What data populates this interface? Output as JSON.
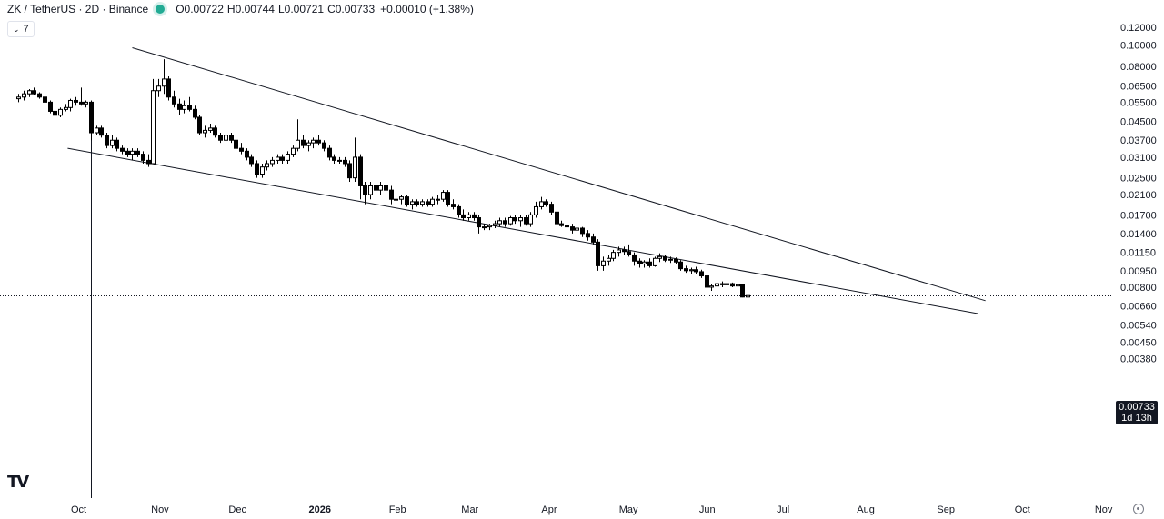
{
  "header": {
    "symbol": "ZK / TetherUS · 2D · Binance",
    "open_label": "O",
    "open": "0.00722",
    "high_label": "H",
    "high": "0.00744",
    "low_label": "L",
    "low": "0.00721",
    "close_label": "C",
    "close": "0.00733",
    "change": "+0.00010 (+1.38%)",
    "indicator_count": "7"
  },
  "logo_text": "TV",
  "price_badge": {
    "price": "0.00733",
    "countdown": "1d 13h"
  },
  "colors": {
    "up": "#ffffff",
    "down": "#000000",
    "status": "#22ab94"
  },
  "chart_data": {
    "type": "candlestick",
    "scale": "log",
    "ylim": [
      0.0036,
      0.13
    ],
    "y_ticks": [
      "0.12000",
      "0.10000",
      "0.08000",
      "0.06500",
      "0.05500",
      "0.04500",
      "0.03700",
      "0.03100",
      "0.02500",
      "0.02100",
      "0.01700",
      "0.01400",
      "0.01150",
      "0.00950",
      "0.00800",
      "0.00660",
      "0.00540",
      "0.00450",
      "0.00380"
    ],
    "x_labels": [
      {
        "label": "Oct",
        "day": 0
      },
      {
        "label": "Nov",
        "day": 31
      },
      {
        "label": "Dec",
        "day": 61
      },
      {
        "label": "2026",
        "day": 92
      },
      {
        "label": "Feb",
        "day": 123
      },
      {
        "label": "Mar",
        "day": 151
      },
      {
        "label": "Apr",
        "day": 182
      },
      {
        "label": "May",
        "day": 212
      },
      {
        "label": "Jun",
        "day": 243
      },
      {
        "label": "Jul",
        "day": 273
      },
      {
        "label": "Aug",
        "day": 304
      },
      {
        "label": "Sep",
        "day": 335
      },
      {
        "label": "Oct",
        "day": 365
      },
      {
        "label": "Nov",
        "day": 396
      }
    ],
    "current_price": 0.00733,
    "candles": [
      {
        "day": -28,
        "o": 0.057,
        "h": 0.06,
        "l": 0.055,
        "c": 0.058
      },
      {
        "day": -26,
        "o": 0.058,
        "h": 0.062,
        "l": 0.056,
        "c": 0.06
      },
      {
        "day": -24,
        "o": 0.06,
        "h": 0.063,
        "l": 0.058,
        "c": 0.062
      },
      {
        "day": -22,
        "o": 0.062,
        "h": 0.064,
        "l": 0.059,
        "c": 0.06
      },
      {
        "day": -20,
        "o": 0.06,
        "h": 0.061,
        "l": 0.057,
        "c": 0.058
      },
      {
        "day": -18,
        "o": 0.058,
        "h": 0.06,
        "l": 0.054,
        "c": 0.055
      },
      {
        "day": -16,
        "o": 0.055,
        "h": 0.056,
        "l": 0.049,
        "c": 0.05
      },
      {
        "day": -14,
        "o": 0.05,
        "h": 0.052,
        "l": 0.047,
        "c": 0.048
      },
      {
        "day": -12,
        "o": 0.048,
        "h": 0.052,
        "l": 0.047,
        "c": 0.051
      },
      {
        "day": -10,
        "o": 0.051,
        "h": 0.054,
        "l": 0.05,
        "c": 0.052
      },
      {
        "day": -8,
        "o": 0.052,
        "h": 0.057,
        "l": 0.05,
        "c": 0.056
      },
      {
        "day": -6,
        "o": 0.056,
        "h": 0.058,
        "l": 0.053,
        "c": 0.055
      },
      {
        "day": -4,
        "o": 0.055,
        "h": 0.064,
        "l": 0.053,
        "c": 0.054
      },
      {
        "day": -2,
        "o": 0.054,
        "h": 0.056,
        "l": 0.052,
        "c": 0.055
      },
      {
        "day": 0,
        "o": 0.055,
        "h": 0.056,
        "l": 0.037,
        "c": 0.04
      },
      {
        "day": 2,
        "o": 0.04,
        "h": 0.043,
        "l": 0.039,
        "c": 0.042
      },
      {
        "day": 4,
        "o": 0.042,
        "h": 0.043,
        "l": 0.038,
        "c": 0.039
      },
      {
        "day": 6,
        "o": 0.039,
        "h": 0.04,
        "l": 0.034,
        "c": 0.035
      },
      {
        "day": 8,
        "o": 0.035,
        "h": 0.039,
        "l": 0.034,
        "c": 0.037
      },
      {
        "day": 10,
        "o": 0.037,
        "h": 0.038,
        "l": 0.033,
        "c": 0.034
      },
      {
        "day": 12,
        "o": 0.034,
        "h": 0.035,
        "l": 0.032,
        "c": 0.033
      },
      {
        "day": 14,
        "o": 0.033,
        "h": 0.034,
        "l": 0.031,
        "c": 0.032
      },
      {
        "day": 16,
        "o": 0.032,
        "h": 0.034,
        "l": 0.03,
        "c": 0.033
      },
      {
        "day": 18,
        "o": 0.033,
        "h": 0.034,
        "l": 0.031,
        "c": 0.032
      },
      {
        "day": 20,
        "o": 0.032,
        "h": 0.033,
        "l": 0.029,
        "c": 0.03
      },
      {
        "day": 22,
        "o": 0.03,
        "h": 0.032,
        "l": 0.028,
        "c": 0.029
      },
      {
        "day": 24,
        "o": 0.029,
        "h": 0.07,
        "l": 0.029,
        "c": 0.062
      },
      {
        "day": 26,
        "o": 0.062,
        "h": 0.07,
        "l": 0.058,
        "c": 0.065
      },
      {
        "day": 28,
        "o": 0.065,
        "h": 0.086,
        "l": 0.06,
        "c": 0.07
      },
      {
        "day": 30,
        "o": 0.07,
        "h": 0.072,
        "l": 0.056,
        "c": 0.058
      },
      {
        "day": 32,
        "o": 0.058,
        "h": 0.062,
        "l": 0.052,
        "c": 0.054
      },
      {
        "day": 34,
        "o": 0.054,
        "h": 0.057,
        "l": 0.048,
        "c": 0.051
      },
      {
        "day": 36,
        "o": 0.051,
        "h": 0.056,
        "l": 0.049,
        "c": 0.053
      },
      {
        "day": 38,
        "o": 0.053,
        "h": 0.058,
        "l": 0.05,
        "c": 0.051
      },
      {
        "day": 40,
        "o": 0.051,
        "h": 0.053,
        "l": 0.046,
        "c": 0.047
      },
      {
        "day": 42,
        "o": 0.047,
        "h": 0.048,
        "l": 0.039,
        "c": 0.04
      },
      {
        "day": 44,
        "o": 0.04,
        "h": 0.043,
        "l": 0.038,
        "c": 0.041
      },
      {
        "day": 46,
        "o": 0.041,
        "h": 0.044,
        "l": 0.04,
        "c": 0.042
      },
      {
        "day": 48,
        "o": 0.042,
        "h": 0.043,
        "l": 0.038,
        "c": 0.039
      },
      {
        "day": 50,
        "o": 0.039,
        "h": 0.04,
        "l": 0.036,
        "c": 0.037
      },
      {
        "day": 52,
        "o": 0.037,
        "h": 0.04,
        "l": 0.036,
        "c": 0.039
      },
      {
        "day": 54,
        "o": 0.039,
        "h": 0.04,
        "l": 0.036,
        "c": 0.037
      },
      {
        "day": 56,
        "o": 0.037,
        "h": 0.038,
        "l": 0.033,
        "c": 0.034
      },
      {
        "day": 58,
        "o": 0.034,
        "h": 0.036,
        "l": 0.032,
        "c": 0.033
      },
      {
        "day": 60,
        "o": 0.033,
        "h": 0.034,
        "l": 0.03,
        "c": 0.031
      },
      {
        "day": 62,
        "o": 0.031,
        "h": 0.032,
        "l": 0.028,
        "c": 0.029
      },
      {
        "day": 64,
        "o": 0.029,
        "h": 0.03,
        "l": 0.025,
        "c": 0.026
      },
      {
        "day": 66,
        "o": 0.026,
        "h": 0.029,
        "l": 0.025,
        "c": 0.028
      },
      {
        "day": 68,
        "o": 0.028,
        "h": 0.03,
        "l": 0.027,
        "c": 0.029
      },
      {
        "day": 70,
        "o": 0.029,
        "h": 0.031,
        "l": 0.028,
        "c": 0.03
      },
      {
        "day": 72,
        "o": 0.03,
        "h": 0.032,
        "l": 0.029,
        "c": 0.031
      },
      {
        "day": 74,
        "o": 0.031,
        "h": 0.032,
        "l": 0.029,
        "c": 0.03
      },
      {
        "day": 76,
        "o": 0.03,
        "h": 0.033,
        "l": 0.029,
        "c": 0.032
      },
      {
        "day": 78,
        "o": 0.032,
        "h": 0.035,
        "l": 0.031,
        "c": 0.034
      },
      {
        "day": 80,
        "o": 0.034,
        "h": 0.046,
        "l": 0.033,
        "c": 0.037
      },
      {
        "day": 82,
        "o": 0.037,
        "h": 0.039,
        "l": 0.034,
        "c": 0.035
      },
      {
        "day": 84,
        "o": 0.035,
        "h": 0.037,
        "l": 0.033,
        "c": 0.036
      },
      {
        "day": 86,
        "o": 0.036,
        "h": 0.038,
        "l": 0.034,
        "c": 0.037
      },
      {
        "day": 88,
        "o": 0.037,
        "h": 0.039,
        "l": 0.035,
        "c": 0.036
      },
      {
        "day": 90,
        "o": 0.036,
        "h": 0.037,
        "l": 0.033,
        "c": 0.034
      },
      {
        "day": 92,
        "o": 0.034,
        "h": 0.035,
        "l": 0.03,
        "c": 0.031
      },
      {
        "day": 94,
        "o": 0.031,
        "h": 0.032,
        "l": 0.029,
        "c": 0.03
      },
      {
        "day": 96,
        "o": 0.03,
        "h": 0.031,
        "l": 0.029,
        "c": 0.03
      },
      {
        "day": 98,
        "o": 0.03,
        "h": 0.031,
        "l": 0.028,
        "c": 0.029
      },
      {
        "day": 100,
        "o": 0.029,
        "h": 0.03,
        "l": 0.024,
        "c": 0.025
      },
      {
        "day": 102,
        "o": 0.025,
        "h": 0.038,
        "l": 0.024,
        "c": 0.031
      },
      {
        "day": 104,
        "o": 0.031,
        "h": 0.032,
        "l": 0.02,
        "c": 0.023
      },
      {
        "day": 106,
        "o": 0.023,
        "h": 0.024,
        "l": 0.019,
        "c": 0.021
      },
      {
        "day": 108,
        "o": 0.021,
        "h": 0.024,
        "l": 0.02,
        "c": 0.023
      },
      {
        "day": 110,
        "o": 0.023,
        "h": 0.024,
        "l": 0.021,
        "c": 0.022
      },
      {
        "day": 112,
        "o": 0.022,
        "h": 0.024,
        "l": 0.021,
        "c": 0.023
      },
      {
        "day": 114,
        "o": 0.023,
        "h": 0.024,
        "l": 0.021,
        "c": 0.022
      },
      {
        "day": 116,
        "o": 0.022,
        "h": 0.023,
        "l": 0.019,
        "c": 0.02
      },
      {
        "day": 118,
        "o": 0.02,
        "h": 0.021,
        "l": 0.019,
        "c": 0.02
      },
      {
        "day": 120,
        "o": 0.02,
        "h": 0.021,
        "l": 0.019,
        "c": 0.0205
      },
      {
        "day": 122,
        "o": 0.0205,
        "h": 0.021,
        "l": 0.0185,
        "c": 0.019
      },
      {
        "day": 124,
        "o": 0.019,
        "h": 0.02,
        "l": 0.018,
        "c": 0.0195
      },
      {
        "day": 126,
        "o": 0.0195,
        "h": 0.02,
        "l": 0.0185,
        "c": 0.019
      },
      {
        "day": 128,
        "o": 0.019,
        "h": 0.02,
        "l": 0.0185,
        "c": 0.0195
      },
      {
        "day": 130,
        "o": 0.0195,
        "h": 0.02,
        "l": 0.0185,
        "c": 0.019
      },
      {
        "day": 132,
        "o": 0.019,
        "h": 0.0205,
        "l": 0.0185,
        "c": 0.02
      },
      {
        "day": 134,
        "o": 0.02,
        "h": 0.021,
        "l": 0.019,
        "c": 0.02
      },
      {
        "day": 136,
        "o": 0.02,
        "h": 0.022,
        "l": 0.0195,
        "c": 0.0215
      },
      {
        "day": 138,
        "o": 0.0215,
        "h": 0.022,
        "l": 0.0185,
        "c": 0.019
      },
      {
        "day": 140,
        "o": 0.019,
        "h": 0.02,
        "l": 0.018,
        "c": 0.0185
      },
      {
        "day": 142,
        "o": 0.0185,
        "h": 0.019,
        "l": 0.0165,
        "c": 0.017
      },
      {
        "day": 144,
        "o": 0.017,
        "h": 0.018,
        "l": 0.016,
        "c": 0.0165
      },
      {
        "day": 146,
        "o": 0.0165,
        "h": 0.0175,
        "l": 0.016,
        "c": 0.017
      },
      {
        "day": 148,
        "o": 0.017,
        "h": 0.0175,
        "l": 0.016,
        "c": 0.0165
      },
      {
        "day": 150,
        "o": 0.0165,
        "h": 0.017,
        "l": 0.014,
        "c": 0.015
      },
      {
        "day": 152,
        "o": 0.015,
        "h": 0.0155,
        "l": 0.0145,
        "c": 0.015
      },
      {
        "day": 154,
        "o": 0.015,
        "h": 0.0155,
        "l": 0.0145,
        "c": 0.0152
      },
      {
        "day": 156,
        "o": 0.0152,
        "h": 0.016,
        "l": 0.0148,
        "c": 0.0155
      },
      {
        "day": 158,
        "o": 0.0155,
        "h": 0.0165,
        "l": 0.015,
        "c": 0.016
      },
      {
        "day": 160,
        "o": 0.016,
        "h": 0.0165,
        "l": 0.015,
        "c": 0.0155
      },
      {
        "day": 162,
        "o": 0.0155,
        "h": 0.0168,
        "l": 0.0152,
        "c": 0.0165
      },
      {
        "day": 164,
        "o": 0.0165,
        "h": 0.017,
        "l": 0.0155,
        "c": 0.016
      },
      {
        "day": 166,
        "o": 0.016,
        "h": 0.017,
        "l": 0.015,
        "c": 0.0165
      },
      {
        "day": 168,
        "o": 0.0165,
        "h": 0.017,
        "l": 0.0152,
        "c": 0.0155
      },
      {
        "day": 170,
        "o": 0.0155,
        "h": 0.0175,
        "l": 0.015,
        "c": 0.017
      },
      {
        "day": 172,
        "o": 0.017,
        "h": 0.0195,
        "l": 0.0165,
        "c": 0.0185
      },
      {
        "day": 174,
        "o": 0.0185,
        "h": 0.0205,
        "l": 0.018,
        "c": 0.0195
      },
      {
        "day": 176,
        "o": 0.0195,
        "h": 0.02,
        "l": 0.0185,
        "c": 0.019
      },
      {
        "day": 178,
        "o": 0.019,
        "h": 0.0195,
        "l": 0.017,
        "c": 0.0175
      },
      {
        "day": 180,
        "o": 0.0175,
        "h": 0.018,
        "l": 0.015,
        "c": 0.0155
      },
      {
        "day": 182,
        "o": 0.0155,
        "h": 0.016,
        "l": 0.015,
        "c": 0.0152
      },
      {
        "day": 184,
        "o": 0.0152,
        "h": 0.0158,
        "l": 0.0145,
        "c": 0.015
      },
      {
        "day": 186,
        "o": 0.015,
        "h": 0.0155,
        "l": 0.014,
        "c": 0.0145
      },
      {
        "day": 188,
        "o": 0.0145,
        "h": 0.015,
        "l": 0.014,
        "c": 0.0148
      },
      {
        "day": 190,
        "o": 0.0148,
        "h": 0.015,
        "l": 0.0135,
        "c": 0.014
      },
      {
        "day": 192,
        "o": 0.014,
        "h": 0.0145,
        "l": 0.013,
        "c": 0.0135
      },
      {
        "day": 194,
        "o": 0.0135,
        "h": 0.014,
        "l": 0.0125,
        "c": 0.0128
      },
      {
        "day": 196,
        "o": 0.0128,
        "h": 0.0132,
        "l": 0.0095,
        "c": 0.01
      },
      {
        "day": 198,
        "o": 0.01,
        "h": 0.011,
        "l": 0.0095,
        "c": 0.0105
      },
      {
        "day": 200,
        "o": 0.0105,
        "h": 0.0112,
        "l": 0.01,
        "c": 0.0108
      },
      {
        "day": 202,
        "o": 0.0108,
        "h": 0.0118,
        "l": 0.0105,
        "c": 0.0115
      },
      {
        "day": 204,
        "o": 0.0115,
        "h": 0.0122,
        "l": 0.011,
        "c": 0.0118
      },
      {
        "day": 206,
        "o": 0.0118,
        "h": 0.0122,
        "l": 0.0112,
        "c": 0.0116
      },
      {
        "day": 208,
        "o": 0.0116,
        "h": 0.0125,
        "l": 0.011,
        "c": 0.0112
      },
      {
        "day": 210,
        "o": 0.0112,
        "h": 0.0115,
        "l": 0.01,
        "c": 0.0105
      },
      {
        "day": 212,
        "o": 0.0105,
        "h": 0.0108,
        "l": 0.0098,
        "c": 0.0102
      },
      {
        "day": 214,
        "o": 0.0102,
        "h": 0.0106,
        "l": 0.0098,
        "c": 0.0104
      },
      {
        "day": 216,
        "o": 0.0104,
        "h": 0.0108,
        "l": 0.0098,
        "c": 0.01
      },
      {
        "day": 218,
        "o": 0.01,
        "h": 0.011,
        "l": 0.0099,
        "c": 0.0108
      },
      {
        "day": 220,
        "o": 0.0108,
        "h": 0.0114,
        "l": 0.0104,
        "c": 0.011
      },
      {
        "day": 222,
        "o": 0.011,
        "h": 0.0112,
        "l": 0.0104,
        "c": 0.0106
      },
      {
        "day": 224,
        "o": 0.0106,
        "h": 0.011,
        "l": 0.0103,
        "c": 0.0107
      },
      {
        "day": 226,
        "o": 0.0107,
        "h": 0.0109,
        "l": 0.0102,
        "c": 0.0104
      },
      {
        "day": 228,
        "o": 0.0104,
        "h": 0.0106,
        "l": 0.0095,
        "c": 0.0097
      },
      {
        "day": 230,
        "o": 0.0097,
        "h": 0.01,
        "l": 0.0093,
        "c": 0.0095
      },
      {
        "day": 232,
        "o": 0.0095,
        "h": 0.0098,
        "l": 0.0092,
        "c": 0.0096
      },
      {
        "day": 234,
        "o": 0.0096,
        "h": 0.0099,
        "l": 0.0092,
        "c": 0.0094
      },
      {
        "day": 236,
        "o": 0.0094,
        "h": 0.0096,
        "l": 0.0088,
        "c": 0.009
      },
      {
        "day": 238,
        "o": 0.009,
        "h": 0.0092,
        "l": 0.0078,
        "c": 0.008
      },
      {
        "day": 240,
        "o": 0.008,
        "h": 0.0083,
        "l": 0.0077,
        "c": 0.0081
      },
      {
        "day": 242,
        "o": 0.0081,
        "h": 0.0084,
        "l": 0.0079,
        "c": 0.0083
      },
      {
        "day": 244,
        "o": 0.0083,
        "h": 0.0085,
        "l": 0.008,
        "c": 0.0082
      },
      {
        "day": 246,
        "o": 0.0082,
        "h": 0.0084,
        "l": 0.008,
        "c": 0.0083
      },
      {
        "day": 248,
        "o": 0.0083,
        "h": 0.0084,
        "l": 0.008,
        "c": 0.0081
      },
      {
        "day": 250,
        "o": 0.0081,
        "h": 0.0085,
        "l": 0.0079,
        "c": 0.0082
      },
      {
        "day": 252,
        "o": 0.0082,
        "h": 0.0083,
        "l": 0.0072,
        "c": 0.00722
      },
      {
        "day": 254,
        "o": 0.00722,
        "h": 0.00744,
        "l": 0.00721,
        "c": 0.00733
      }
    ],
    "trendlines": [
      {
        "name": "upper",
        "from": {
          "day": 16,
          "price": 0.097
        },
        "to": {
          "day": 346,
          "price": 0.00695
        }
      },
      {
        "name": "lower",
        "from": {
          "day": -9,
          "price": 0.034
        },
        "to": {
          "day": 343,
          "price": 0.00608
        }
      }
    ],
    "vertical_marker_day": 0
  }
}
